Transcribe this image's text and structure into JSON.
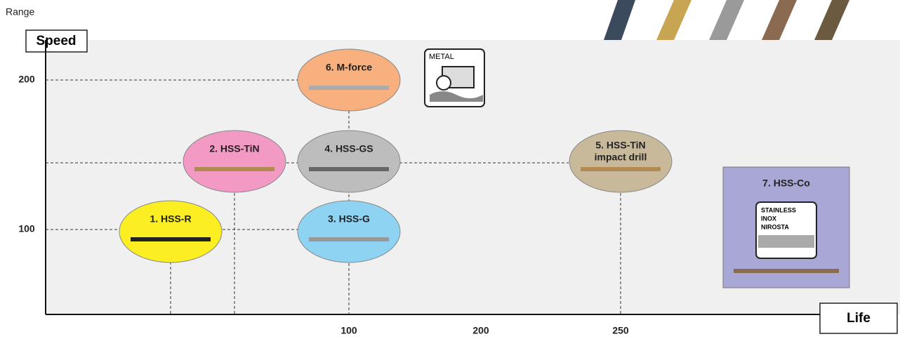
{
  "header": {
    "title": "Range"
  },
  "axes": {
    "y_label": "Speed",
    "x_label": "Life",
    "y_ticks": [
      "200",
      "100"
    ],
    "x_ticks": [
      "100",
      "200",
      "250"
    ]
  },
  "nodes": [
    {
      "label": "1. HSS-R"
    },
    {
      "label": "2.  HSS-TiN"
    },
    {
      "label": "3. HSS-G"
    },
    {
      "label": "4. HSS-GS"
    },
    {
      "label_lines": [
        "5. HSS-TiN",
        "impact drill"
      ]
    },
    {
      "label": "6. M-force"
    },
    {
      "label": "7. HSS-Co"
    }
  ],
  "icons": {
    "metal": "METAL",
    "stainless": [
      "STAINLESS",
      "INOX",
      "NIROSTA"
    ]
  }
}
